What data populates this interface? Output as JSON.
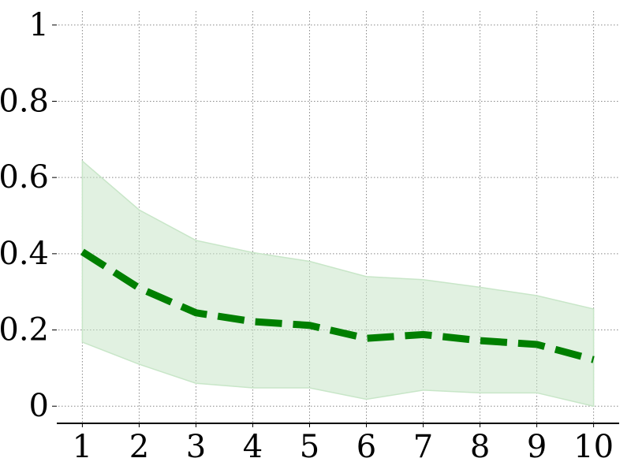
{
  "chart_data": {
    "type": "line",
    "title": "",
    "xlabel": "",
    "ylabel": "",
    "x": [
      1,
      2,
      3,
      4,
      5,
      6,
      7,
      8,
      9,
      10
    ],
    "xlim": [
      0.55,
      10.45
    ],
    "ylim": [
      -0.045,
      1.045
    ],
    "x_ticks": [
      "1",
      "2",
      "3",
      "4",
      "5",
      "6",
      "7",
      "8",
      "9",
      "10"
    ],
    "y_ticks": [
      "0",
      "0.2",
      "0.4",
      "0.6",
      "0.8",
      "1"
    ],
    "y_tick_values": [
      0,
      0.2,
      0.4,
      0.6,
      0.8,
      1
    ],
    "grid": true,
    "legend": "none",
    "series": [
      {
        "values": [
          0.405,
          0.31,
          0.245,
          0.222,
          0.212,
          0.178,
          0.188,
          0.172,
          0.162,
          0.122
        ],
        "lower": [
          0.168,
          0.11,
          0.06,
          0.048,
          0.048,
          0.018,
          0.042,
          0.035,
          0.035,
          0.0
        ],
        "upper": [
          0.643,
          0.515,
          0.435,
          0.403,
          0.38,
          0.34,
          0.332,
          0.312,
          0.29,
          0.255
        ],
        "color": "#007f00",
        "band_color": "#c8e6c8",
        "line_style": "dashed"
      }
    ]
  }
}
